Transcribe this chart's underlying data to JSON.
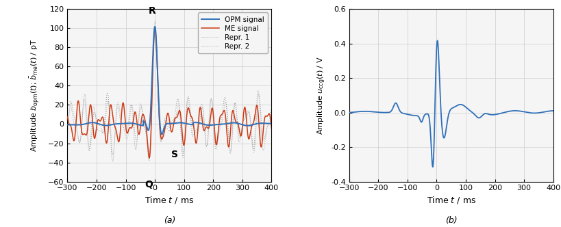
{
  "fig_width": 8.2,
  "fig_height": 3.32,
  "dpi": 100,
  "background_color": "#ffffff",
  "plot_background": "#f5f5f5",
  "ax1": {
    "xlim": [
      -300,
      400
    ],
    "ylim": [
      -60,
      120
    ],
    "xlabel": "Time $t$ / ms",
    "xticks": [
      -300,
      -200,
      -100,
      0,
      100,
      200,
      300,
      400
    ],
    "yticks": [
      -60,
      -40,
      -20,
      0,
      20,
      40,
      60,
      80,
      100,
      120
    ],
    "label_a": "(a)",
    "opm_color": "#3070b8",
    "me_color": "#cc3a14",
    "repr_color": "#999999",
    "grid_color": "#cccccc"
  },
  "ax2": {
    "xlim": [
      -300,
      400
    ],
    "ylim": [
      -0.4,
      0.6
    ],
    "xlabel": "Time $t$ / ms",
    "xticks": [
      -300,
      -200,
      -100,
      0,
      100,
      200,
      300,
      400
    ],
    "yticks": [
      -0.4,
      -0.2,
      0.0,
      0.2,
      0.4,
      0.6
    ],
    "label_b": "(b)",
    "signal_color": "#3070b8",
    "grid_color": "#cccccc"
  }
}
